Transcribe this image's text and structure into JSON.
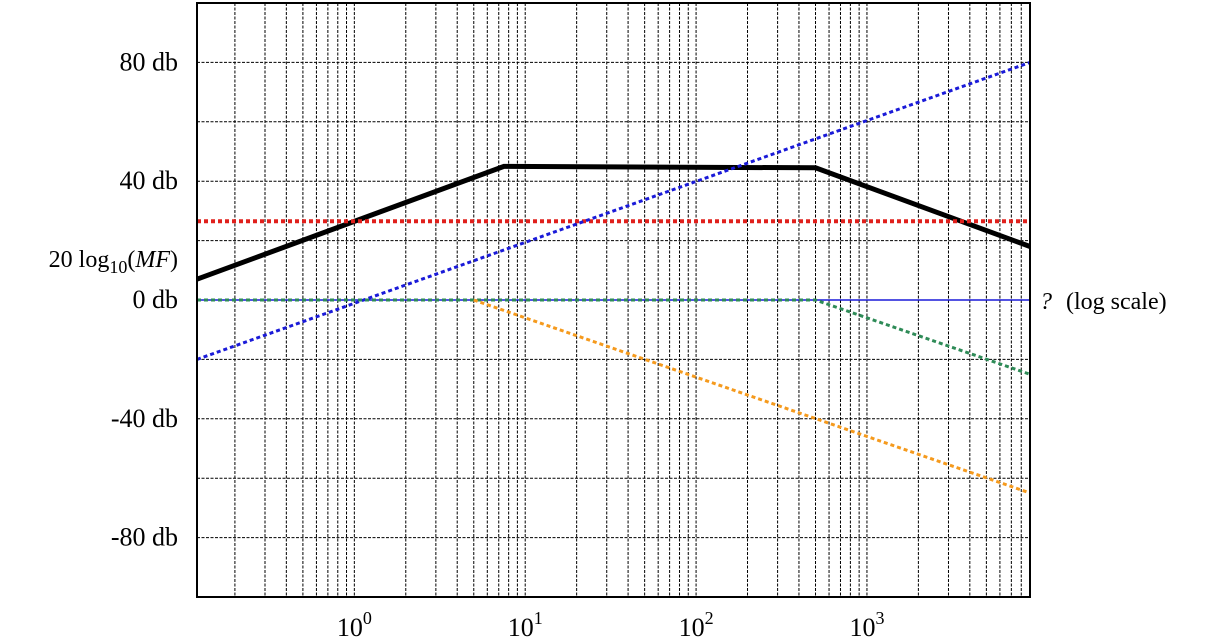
{
  "chart_data": {
    "type": "line",
    "x_scale": "log",
    "xlim": [
      0.12,
      9000
    ],
    "ylim": [
      -100,
      100
    ],
    "y_ticks": [
      {
        "value": 80,
        "label": "80 db"
      },
      {
        "value": 40,
        "label": "40 db"
      },
      {
        "value": 0,
        "label": "0 db"
      },
      {
        "value": -40,
        "label": "-40 db"
      },
      {
        "value": -80,
        "label": "-80 db"
      }
    ],
    "x_ticks": [
      {
        "value": 1,
        "base": "10",
        "exp": "0"
      },
      {
        "value": 10,
        "base": "10",
        "exp": "1"
      },
      {
        "value": 100,
        "base": "10",
        "exp": "2"
      },
      {
        "value": 1000,
        "base": "10",
        "exp": "3"
      }
    ],
    "ylabel": {
      "prefix": "20 log",
      "sub": "10",
      "open": "(",
      "italic": "MF",
      "close": ")"
    },
    "xlabel": {
      "symbol": "?",
      "text": "(log scale)"
    },
    "grid": true,
    "series": [
      {
        "color": "#000000",
        "style": "solid",
        "width": 5,
        "points": [
          [
            0.12,
            7
          ],
          [
            7.5,
            45
          ],
          [
            500,
            44.5
          ],
          [
            9000,
            18
          ]
        ]
      },
      {
        "color": "#e0201c",
        "style": "dotted",
        "width": 4,
        "points": [
          [
            0.12,
            26.5
          ],
          [
            9000,
            26.5
          ]
        ]
      },
      {
        "color": "#1a1ad8",
        "style": "dotted",
        "width": 3,
        "points": [
          [
            0.12,
            -20
          ],
          [
            9000,
            80
          ]
        ]
      },
      {
        "color": "#1a1ad8",
        "style": "solid",
        "width": 1.5,
        "points": [
          [
            0.12,
            0
          ],
          [
            9000,
            0
          ]
        ]
      },
      {
        "color": "#2e8b57",
        "style": "dotted",
        "width": 3,
        "points": [
          [
            0.12,
            0
          ],
          [
            500,
            0
          ],
          [
            9000,
            -25
          ]
        ]
      },
      {
        "color": "#f59a1d",
        "style": "dotted",
        "width": 3,
        "points": [
          [
            5,
            0
          ],
          [
            9000,
            -65
          ]
        ]
      }
    ]
  }
}
